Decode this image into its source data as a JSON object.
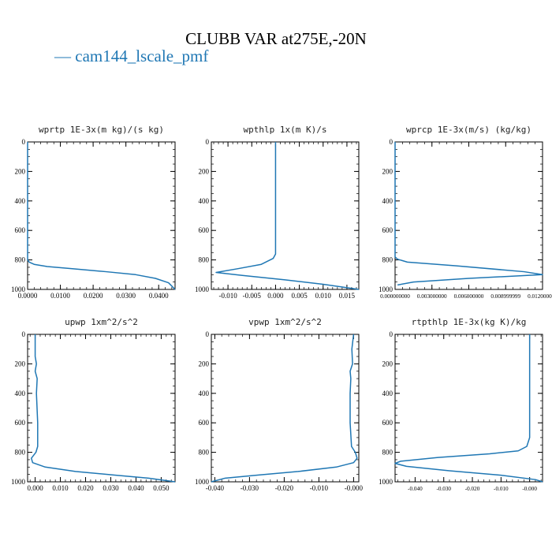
{
  "figure": {
    "title": "CLUBB VAR at275E,-20N",
    "legend": [
      {
        "label": "— cam144_lscale_pmf",
        "color": "#1f77b4"
      }
    ]
  },
  "chart_data": [
    {
      "type": "line",
      "title": "wprtp  1E-3x(m kg)/(s kg)",
      "xlim": [
        0.0,
        0.045
      ],
      "ylim": [
        1000,
        0
      ],
      "xticks": [
        0.0,
        0.01,
        0.02,
        0.03,
        0.04
      ],
      "xtick_labels": [
        "0.0000",
        "0.0100",
        "0.0200",
        "0.0300",
        "0.0400"
      ],
      "yticks": [
        0,
        200,
        400,
        600,
        800,
        1000
      ],
      "ytick_labels": [
        "0",
        "200",
        "400",
        "600",
        "800",
        "1000"
      ],
      "series": [
        {
          "color": "#1f77b4",
          "x": [
            0.0,
            0.0,
            0.0,
            0.0,
            0.0,
            0.0,
            0.0005,
            0.002,
            0.006,
            0.014,
            0.024,
            0.033,
            0.039,
            0.043,
            0.045
          ],
          "y": [
            0,
            200,
            400,
            600,
            780,
            800,
            815,
            830,
            845,
            860,
            880,
            900,
            925,
            955,
            1000
          ]
        }
      ]
    },
    {
      "type": "line",
      "title": "wpthlp  1x(m K)/s",
      "xlim": [
        -0.0135,
        0.0175
      ],
      "ylim": [
        1000,
        0
      ],
      "xticks": [
        -0.01,
        -0.005,
        0.0,
        0.005,
        0.01,
        0.015
      ],
      "xtick_labels": [
        "-0.010",
        "-0.005",
        "0.000",
        "0.005",
        "0.010",
        "0.015"
      ],
      "yticks": [
        0,
        200,
        400,
        600,
        800,
        1000
      ],
      "ytick_labels": [
        "0",
        "200",
        "400",
        "600",
        "800",
        "1000"
      ],
      "series": [
        {
          "color": "#1f77b4",
          "x": [
            0.0,
            0.0,
            0.0,
            0.0,
            0.0,
            -0.0005,
            -0.003,
            -0.008,
            -0.0125,
            -0.007,
            0.002,
            0.01,
            0.0175
          ],
          "y": [
            0,
            200,
            400,
            600,
            760,
            790,
            830,
            860,
            885,
            905,
            935,
            965,
            1000
          ]
        }
      ]
    },
    {
      "type": "line",
      "title": "wprcp  1E-3x(m/s) (kg/kg)",
      "xlim": [
        0.0,
        0.012
      ],
      "ylim": [
        1000,
        0
      ],
      "xticks": [
        0.0,
        0.003,
        0.006,
        0.009,
        0.012
      ],
      "xtick_labels": [
        "0.000000000",
        "0.003000000",
        "0.006000000",
        "0.008999999",
        "0.012000000"
      ],
      "yticks": [
        0,
        200,
        400,
        600,
        800,
        1000
      ],
      "ytick_labels": [
        "0",
        "200",
        "400",
        "600",
        "800",
        "1000"
      ],
      "series": [
        {
          "color": "#1f77b4",
          "x": [
            0.0,
            0.0,
            0.0,
            0.0,
            0.0,
            0.0002,
            0.001,
            0.005,
            0.0105,
            0.012,
            0.006,
            0.0015,
            0.0002
          ],
          "y": [
            0,
            200,
            400,
            600,
            780,
            795,
            815,
            840,
            880,
            900,
            925,
            950,
            970
          ]
        }
      ]
    },
    {
      "type": "line",
      "title": "upwp  1xm^2/s^2",
      "xlim": [
        -0.003,
        0.0555
      ],
      "ylim": [
        1000,
        0
      ],
      "xticks": [
        0.0,
        0.01,
        0.02,
        0.03,
        0.04,
        0.05
      ],
      "xtick_labels": [
        "0.000",
        "0.010",
        "0.020",
        "0.030",
        "0.040",
        "0.050"
      ],
      "yticks": [
        0,
        200,
        400,
        600,
        800,
        1000
      ],
      "ytick_labels": [
        "0",
        "200",
        "400",
        "600",
        "800",
        "1000"
      ],
      "series": [
        {
          "color": "#1f77b4",
          "x": [
            0.0,
            0.0,
            0.0005,
            0.0,
            0.0008,
            0.0005,
            0.001,
            0.001,
            0.0003,
            -0.0015,
            -0.001,
            0.004,
            0.016,
            0.032,
            0.045,
            0.0555
          ],
          "y": [
            0,
            150,
            200,
            250,
            300,
            400,
            600,
            760,
            800,
            840,
            870,
            900,
            930,
            955,
            975,
            1000
          ]
        }
      ]
    },
    {
      "type": "line",
      "title": "vpwp  1xm^2/s^2",
      "xlim": [
        -0.041,
        0.0015
      ],
      "ylim": [
        1000,
        0
      ],
      "xticks": [
        -0.04,
        -0.03,
        -0.02,
        -0.01,
        0.0
      ],
      "xtick_labels": [
        "-0.040",
        "-0.030",
        "-0.020",
        "-0.010",
        "-0.000"
      ],
      "yticks": [
        0,
        200,
        400,
        600,
        800,
        1000
      ],
      "ytick_labels": [
        "0",
        "200",
        "400",
        "600",
        "800",
        "1000"
      ],
      "series": [
        {
          "color": "#1f77b4",
          "x": [
            0.0,
            -0.0005,
            -0.0003,
            -0.001,
            -0.0008,
            -0.001,
            -0.001,
            -0.0006,
            0.0005,
            0.001,
            0.0,
            -0.005,
            -0.016,
            -0.028,
            -0.037,
            -0.041
          ],
          "y": [
            0,
            100,
            200,
            250,
            300,
            400,
            600,
            760,
            800,
            840,
            870,
            900,
            930,
            955,
            975,
            1000
          ]
        }
      ]
    },
    {
      "type": "line",
      "title": "rtpthlp  1E-3x(kg K)/kg",
      "xlim": [
        -0.047,
        0.0045
      ],
      "ylim": [
        1000,
        0
      ],
      "xticks": [
        -0.04,
        -0.03,
        -0.02,
        -0.01,
        0.0
      ],
      "xtick_labels": [
        "-0.040",
        "-0.030",
        "-0.020",
        "-0.010",
        "-0.000"
      ],
      "yticks": [
        0,
        200,
        400,
        600,
        800,
        1000
      ],
      "ytick_labels": [
        "0",
        "200",
        "400",
        "600",
        "800",
        "1000"
      ],
      "series": [
        {
          "color": "#1f77b4",
          "x": [
            0.0,
            0.0,
            0.0,
            0.0,
            0.0,
            -0.001,
            -0.004,
            -0.014,
            -0.032,
            -0.045,
            -0.047,
            -0.043,
            -0.028,
            -0.01,
            0.002,
            0.0045
          ],
          "y": [
            0,
            200,
            400,
            600,
            700,
            760,
            790,
            810,
            835,
            860,
            875,
            895,
            925,
            955,
            985,
            1000
          ]
        }
      ]
    }
  ]
}
